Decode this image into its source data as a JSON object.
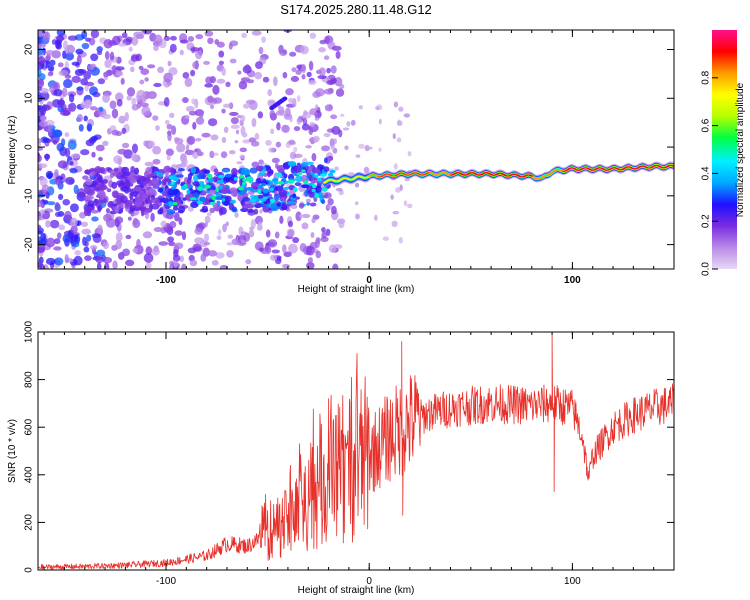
{
  "title": "S174.2025.280.11.48.G12",
  "colors": {
    "trace": "#e8302a",
    "axis": "#000000",
    "background": "#ffffff"
  },
  "chart_data": [
    {
      "type": "heatmap",
      "name": "spectrogram",
      "xlabel": "Height of straight line (km)",
      "ylabel": "Frequency (Hz)",
      "xlim": [
        -163,
        150
      ],
      "ylim": [
        -25,
        24
      ],
      "xticks": [
        -100,
        0,
        100
      ],
      "yticks": [
        -20,
        -10,
        0,
        10,
        20
      ],
      "colorbar": {
        "label": "Normalized spectral amplitude",
        "range": [
          0,
          1
        ],
        "ticks": [
          0.0,
          0.2,
          0.4,
          0.6,
          0.8
        ],
        "tick_labels": [
          "0.0",
          "0.2",
          "0.4",
          "0.6",
          "0.8"
        ],
        "colormap": [
          "#e8d8f6",
          "#b98ae8",
          "#7a2ce0",
          "#1f10ff",
          "#00a8ff",
          "#00f0ff",
          "#00ff40",
          "#b8ff00",
          "#ffff00",
          "#ff9a00",
          "#ff0000",
          "#ff1090"
        ]
      },
      "ridge": {
        "x": [
          -100,
          -80,
          -60,
          -40,
          -20,
          0,
          20,
          40,
          60,
          80,
          85,
          90,
          100,
          120,
          140,
          150
        ],
        "freq": [
          -9,
          -8.5,
          -9,
          -8,
          -7,
          -6,
          -5.5,
          -5.5,
          -5.5,
          -6,
          -6.5,
          -5,
          -4.5,
          -4.5,
          -4,
          -4
        ]
      }
    },
    {
      "type": "line",
      "name": "snr",
      "xlabel": "Height of straight line (km)",
      "ylabel": "SNR (10 * v/v)",
      "xlim": [
        -163,
        150
      ],
      "ylim": [
        0,
        1000
      ],
      "xticks": [
        -100,
        0,
        100
      ],
      "yticks": [
        0,
        200,
        400,
        600,
        800,
        1000
      ],
      "series": [
        {
          "name": "SNR",
          "x": [
            -163,
            -140,
            -120,
            -100,
            -80,
            -70,
            -60,
            -50,
            -40,
            -30,
            -20,
            -10,
            0,
            10,
            20,
            30,
            40,
            60,
            80,
            90,
            100,
            105,
            108,
            110,
            120,
            130,
            140,
            150
          ],
          "y": [
            12,
            15,
            20,
            30,
            60,
            110,
            100,
            150,
            200,
            300,
            380,
            420,
            480,
            560,
            620,
            660,
            680,
            700,
            690,
            700,
            680,
            560,
            380,
            480,
            600,
            650,
            680,
            700
          ]
        }
      ],
      "spikes": [
        {
          "x": -20,
          "y": 720
        },
        {
          "x": 16,
          "y": 960
        },
        {
          "x": 90,
          "y": 1000
        },
        {
          "x": 91,
          "y": 330
        },
        {
          "x": 16.5,
          "y": 230
        }
      ]
    }
  ]
}
